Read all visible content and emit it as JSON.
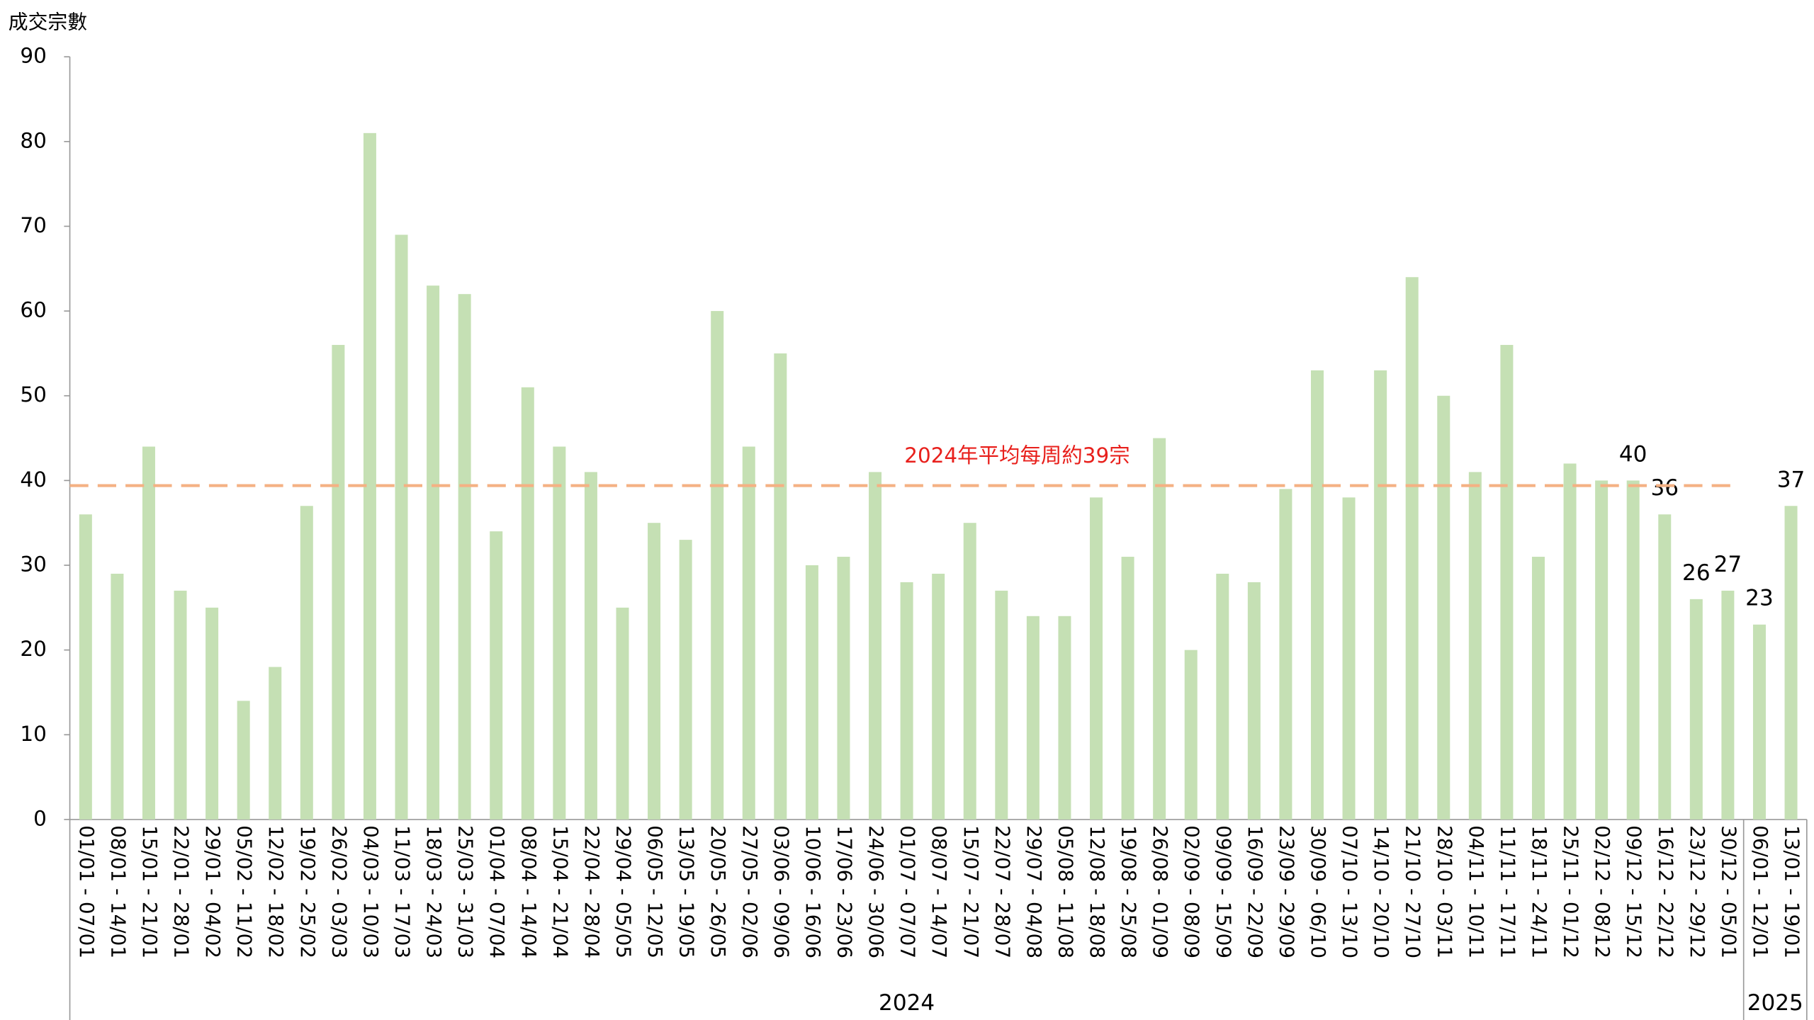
{
  "chart_data": {
    "type": "bar",
    "ylabel": "成交宗數",
    "categories": [
      "01/01 - 07/01",
      "08/01 - 14/01",
      "15/01 - 21/01",
      "22/01 - 28/01",
      "29/01 - 04/02",
      "05/02 - 11/02",
      "12/02 - 18/02",
      "19/02 - 25/02",
      "26/02 - 03/03",
      "04/03 - 10/03",
      "11/03 - 17/03",
      "18/03 - 24/03",
      "25/03 - 31/03",
      "01/04 - 07/04",
      "08/04 - 14/04",
      "15/04 - 21/04",
      "22/04 - 28/04",
      "29/04 - 05/05",
      "06/05 - 12/05",
      "13/05 - 19/05",
      "20/05 - 26/05",
      "27/05 - 02/06",
      "03/06 - 09/06",
      "10/06 - 16/06",
      "17/06 - 23/06",
      "24/06 - 30/06",
      "01/07 - 07/07",
      "08/07 - 14/07",
      "15/07 - 21/07",
      "22/07 - 28/07",
      "29/07 - 04/08",
      "05/08 - 11/08",
      "12/08 - 18/08",
      "19/08 - 25/08",
      "26/08 - 01/09",
      "02/09 - 08/09",
      "09/09 - 15/09",
      "16/09 - 22/09",
      "23/09 - 29/09",
      "30/09 - 06/10",
      "07/10 - 13/10",
      "14/10 - 20/10",
      "21/10 - 27/10",
      "28/10 - 03/11",
      "04/11 - 10/11",
      "11/11 - 17/11",
      "18/11 - 24/11",
      "25/11 - 01/12",
      "02/12 - 08/12",
      "09/12 - 15/12",
      "16/12 - 22/12",
      "23/12 - 29/12",
      "30/12 - 05/01",
      "06/01 - 12/01",
      "13/01 - 19/01"
    ],
    "values": [
      36,
      29,
      44,
      27,
      25,
      14,
      18,
      37,
      56,
      81,
      69,
      63,
      62,
      34,
      51,
      44,
      41,
      25,
      35,
      33,
      60,
      44,
      55,
      30,
      31,
      41,
      28,
      29,
      35,
      27,
      24,
      24,
      38,
      31,
      45,
      20,
      29,
      28,
      39,
      53,
      38,
      53,
      64,
      50,
      41,
      56,
      31,
      42,
      40,
      40,
      36,
      26,
      27,
      23,
      37
    ],
    "value_labels": [
      null,
      null,
      null,
      null,
      null,
      null,
      null,
      null,
      null,
      null,
      null,
      null,
      null,
      null,
      null,
      null,
      null,
      null,
      null,
      null,
      null,
      null,
      null,
      null,
      null,
      null,
      null,
      null,
      null,
      null,
      null,
      null,
      null,
      null,
      null,
      null,
      null,
      null,
      null,
      null,
      null,
      null,
      null,
      null,
      null,
      null,
      null,
      null,
      null,
      "40",
      "36",
      "26",
      "27",
      "23",
      "37"
    ],
    "groups": [
      {
        "label": "2024",
        "count": 53
      },
      {
        "label": "2025",
        "count": 2
      }
    ],
    "reference_line": {
      "value": 39.4,
      "label": "2024年平均每周約39宗",
      "color": "#f4b183",
      "label_color": "#e8201c"
    },
    "color": "#c5e0b4",
    "ylim": [
      0,
      90
    ],
    "yticks": [
      0,
      10,
      20,
      30,
      40,
      50,
      60,
      70,
      80,
      90
    ],
    "grid": false
  }
}
